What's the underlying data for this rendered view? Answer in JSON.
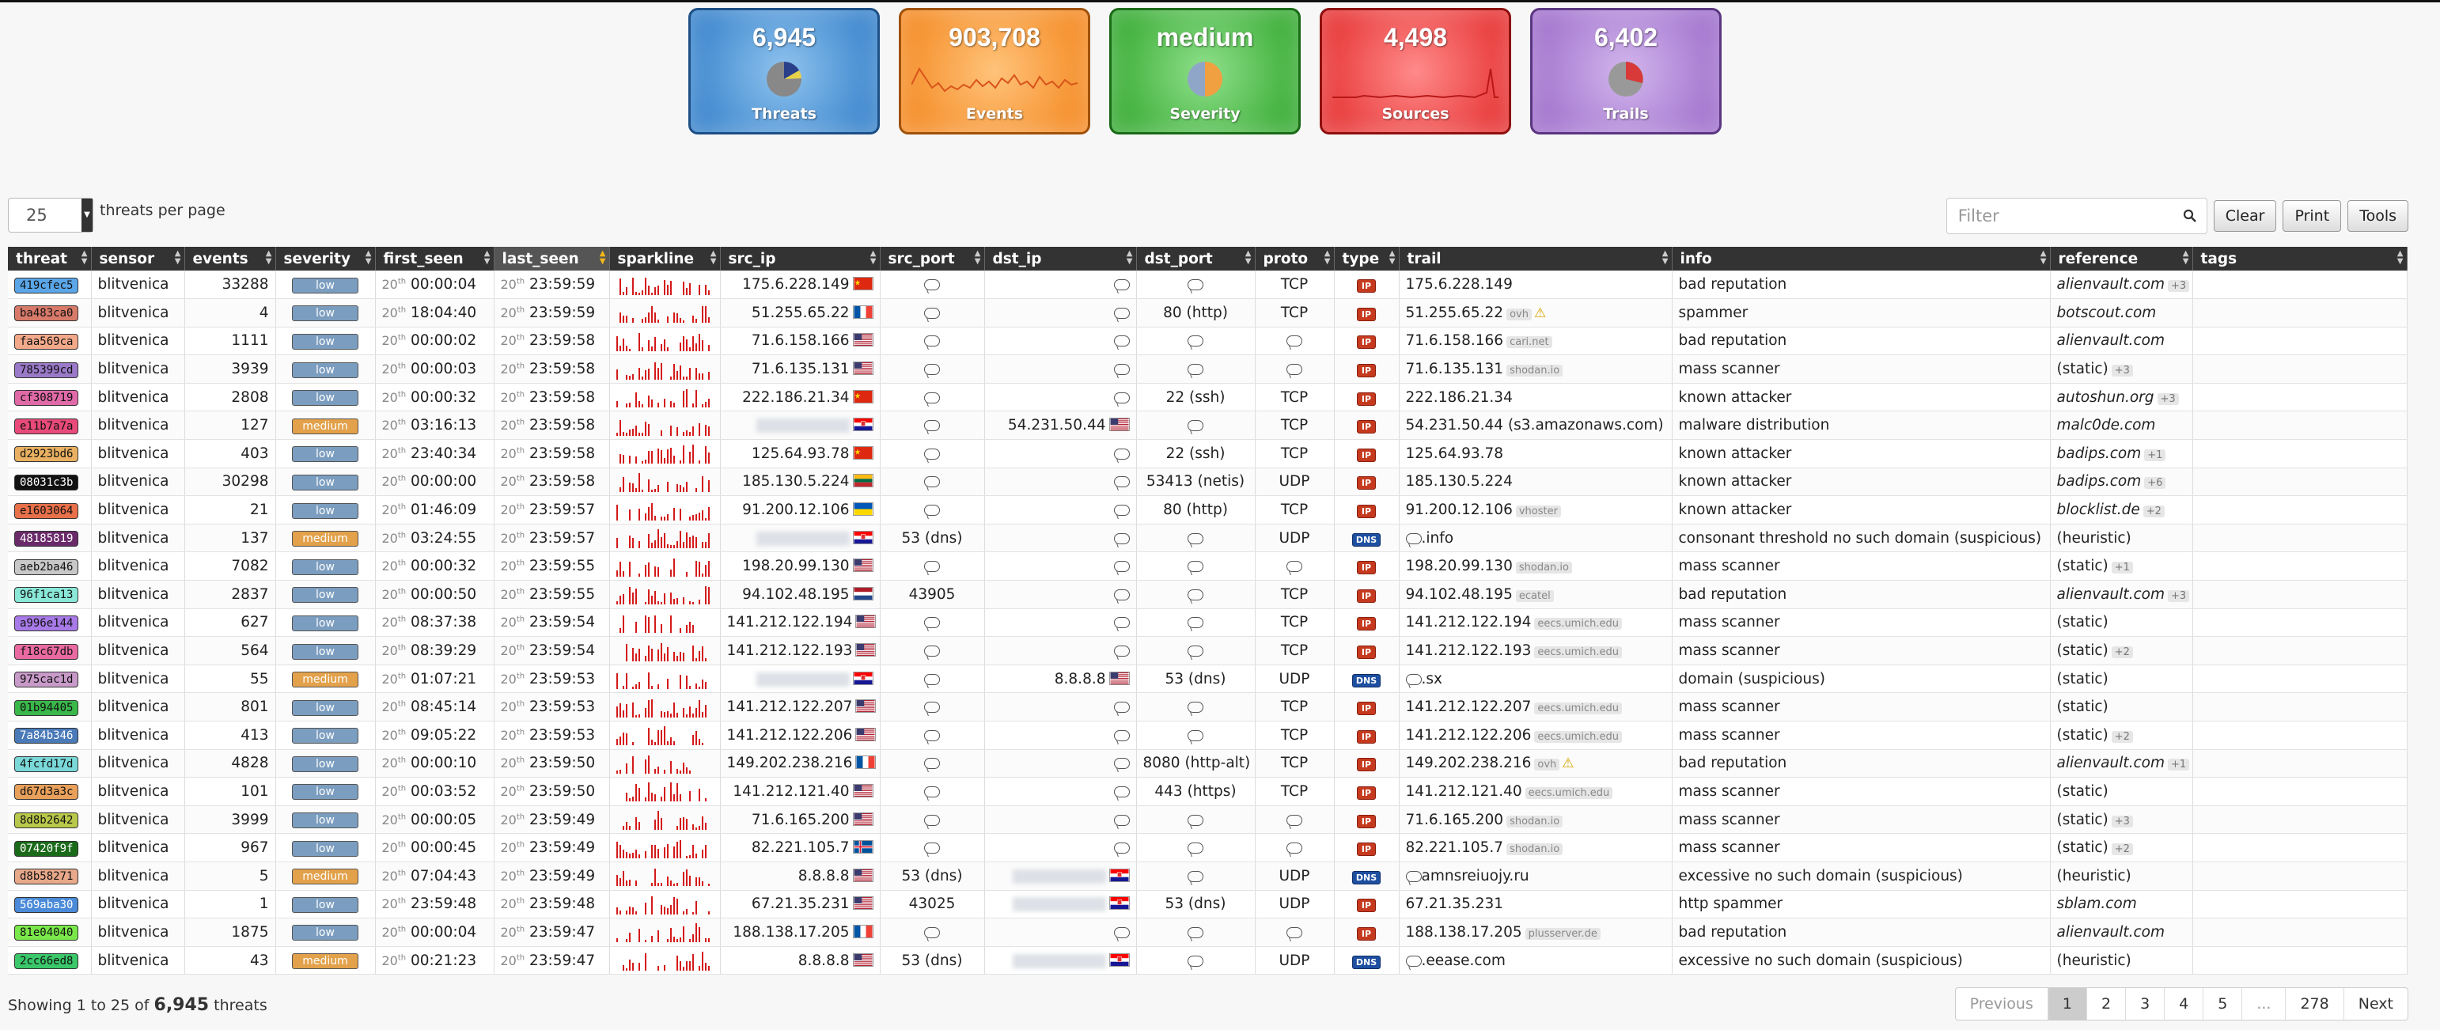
{
  "status_boxes": [
    {
      "id": "threats",
      "value": "6,945",
      "label": "Threats"
    },
    {
      "id": "events",
      "value": "903,708",
      "label": "Events"
    },
    {
      "id": "severity",
      "value": "medium",
      "label": "Severity"
    },
    {
      "id": "sources",
      "value": "4,498",
      "label": "Sources"
    },
    {
      "id": "trails",
      "value": "6,402",
      "label": "Trails"
    }
  ],
  "per_page": {
    "value": "25",
    "label": "threats per page"
  },
  "filter": {
    "placeholder": "Filter"
  },
  "buttons": {
    "clear": "Clear",
    "print": "Print",
    "tools": "Tools"
  },
  "columns": [
    "threat",
    "sensor",
    "events",
    "severity",
    "first_seen",
    "last_seen",
    "sparkline",
    "src_ip",
    "src_port",
    "dst_ip",
    "dst_port",
    "proto",
    "type",
    "trail",
    "info",
    "reference",
    "tags"
  ],
  "rows": [
    {
      "threat": "419cfec5",
      "color": "#5aa6e8",
      "sensor": "blitvenica",
      "events": "33288",
      "severity": "low",
      "first_day": "20",
      "first_time": "00:00:04",
      "last_day": "20",
      "last_time": "23:59:59",
      "src_ip": "175.6.228.149",
      "src_flag": "cn",
      "src_port": "",
      "dst_ip": "",
      "dst_flag": "",
      "dst_port": "",
      "proto": "TCP",
      "type": "IP",
      "trail": "175.6.228.149",
      "trail_tag": "",
      "trail_warn": false,
      "info": "bad reputation",
      "reference": "alienvault.com",
      "ref_italic": true,
      "ref_plus": "+3"
    },
    {
      "threat": "ba483ca0",
      "color": "#d87a6a",
      "sensor": "blitvenica",
      "events": "4",
      "severity": "low",
      "first_day": "20",
      "first_time": "18:04:40",
      "last_day": "20",
      "last_time": "23:59:59",
      "src_ip": "51.255.65.22",
      "src_flag": "fr",
      "src_port": "",
      "dst_ip": "",
      "dst_flag": "",
      "dst_port": "80 (http)",
      "proto": "TCP",
      "type": "IP",
      "trail": "51.255.65.22",
      "trail_tag": "ovh",
      "trail_warn": true,
      "info": "spammer",
      "reference": "botscout.com",
      "ref_italic": true,
      "ref_plus": ""
    },
    {
      "threat": "faa569ca",
      "color": "#f2a98a",
      "sensor": "blitvenica",
      "events": "1111",
      "severity": "low",
      "first_day": "20",
      "first_time": "00:00:02",
      "last_day": "20",
      "last_time": "23:59:58",
      "src_ip": "71.6.158.166",
      "src_flag": "us",
      "src_port": "",
      "dst_ip": "",
      "dst_flag": "",
      "dst_port": "",
      "proto": "",
      "type": "IP",
      "trail": "71.6.158.166",
      "trail_tag": "cari.net",
      "trail_warn": false,
      "info": "bad reputation",
      "reference": "alienvault.com",
      "ref_italic": true,
      "ref_plus": ""
    },
    {
      "threat": "785399cd",
      "color": "#9a7ac8",
      "sensor": "blitvenica",
      "events": "3939",
      "severity": "low",
      "first_day": "20",
      "first_time": "00:00:03",
      "last_day": "20",
      "last_time": "23:59:58",
      "src_ip": "71.6.135.131",
      "src_flag": "us",
      "src_port": "",
      "dst_ip": "",
      "dst_flag": "",
      "dst_port": "",
      "proto": "",
      "type": "IP",
      "trail": "71.6.135.131",
      "trail_tag": "shodan.io",
      "trail_warn": false,
      "info": "mass scanner",
      "reference": "(static)",
      "ref_italic": false,
      "ref_plus": "+3"
    },
    {
      "threat": "cf308719",
      "color": "#e06aa8",
      "sensor": "blitvenica",
      "events": "2808",
      "severity": "low",
      "first_day": "20",
      "first_time": "00:00:32",
      "last_day": "20",
      "last_time": "23:59:58",
      "src_ip": "222.186.21.34",
      "src_flag": "cn",
      "src_port": "",
      "dst_ip": "",
      "dst_flag": "",
      "dst_port": "22 (ssh)",
      "proto": "TCP",
      "type": "IP",
      "trail": "222.186.21.34",
      "trail_tag": "",
      "trail_warn": false,
      "info": "known attacker",
      "reference": "autoshun.org",
      "ref_italic": true,
      "ref_plus": "+3"
    },
    {
      "threat": "e11b7a7a",
      "color": "#e84a7a",
      "sensor": "blitvenica",
      "events": "127",
      "severity": "medium",
      "first_day": "20",
      "first_time": "03:16:13",
      "last_day": "20",
      "last_time": "23:59:58",
      "src_ip": "",
      "src_flag": "hr",
      "src_port": "",
      "dst_ip": "54.231.50.44",
      "dst_flag": "us",
      "dst_port": "",
      "proto": "TCP",
      "type": "IP",
      "trail": "54.231.50.44 (s3.amazonaws.com)",
      "trail_tag": "",
      "trail_warn": false,
      "info": "malware distribution",
      "reference": "malc0de.com",
      "ref_italic": true,
      "ref_plus": ""
    },
    {
      "threat": "d2923bd6",
      "color": "#e8b060",
      "sensor": "blitvenica",
      "events": "403",
      "severity": "low",
      "first_day": "20",
      "first_time": "23:40:34",
      "last_day": "20",
      "last_time": "23:59:58",
      "src_ip": "125.64.93.78",
      "src_flag": "cn",
      "src_port": "",
      "dst_ip": "",
      "dst_flag": "",
      "dst_port": "22 (ssh)",
      "proto": "TCP",
      "type": "IP",
      "trail": "125.64.93.78",
      "trail_tag": "",
      "trail_warn": false,
      "info": "known attacker",
      "reference": "badips.com",
      "ref_italic": true,
      "ref_plus": "+1"
    },
    {
      "threat": "08031c3b",
      "color": "#111111",
      "sensor": "blitvenica",
      "events": "30298",
      "severity": "low",
      "first_day": "20",
      "first_time": "00:00:00",
      "last_day": "20",
      "last_time": "23:59:58",
      "src_ip": "185.130.5.224",
      "src_flag": "lt",
      "src_port": "",
      "dst_ip": "",
      "dst_flag": "",
      "dst_port": "53413 (netis)",
      "proto": "UDP",
      "type": "IP",
      "trail": "185.130.5.224",
      "trail_tag": "",
      "trail_warn": false,
      "info": "known attacker",
      "reference": "badips.com",
      "ref_italic": true,
      "ref_plus": "+6"
    },
    {
      "threat": "e1603064",
      "color": "#e8704a",
      "sensor": "blitvenica",
      "events": "21",
      "severity": "low",
      "first_day": "20",
      "first_time": "01:46:09",
      "last_day": "20",
      "last_time": "23:59:57",
      "src_ip": "91.200.12.106",
      "src_flag": "ua",
      "src_port": "",
      "dst_ip": "",
      "dst_flag": "",
      "dst_port": "80 (http)",
      "proto": "TCP",
      "type": "IP",
      "trail": "91.200.12.106",
      "trail_tag": "vhoster",
      "trail_warn": false,
      "info": "known attacker",
      "reference": "blocklist.de",
      "ref_italic": true,
      "ref_plus": "+2"
    },
    {
      "threat": "48185819",
      "color": "#6a2a6a",
      "sensor": "blitvenica",
      "events": "137",
      "severity": "medium",
      "first_day": "20",
      "first_time": "03:24:55",
      "last_day": "20",
      "last_time": "23:59:57",
      "src_ip": "",
      "src_flag": "hr",
      "src_port": "53 (dns)",
      "dst_ip": "",
      "dst_flag": "",
      "dst_port": "",
      "proto": "UDP",
      "type": "DNS",
      "trail": ".info",
      "trail_tag": "",
      "trail_warn": false,
      "info": "consonant threshold no such domain (suspicious)",
      "reference": "(heuristic)",
      "ref_italic": false,
      "ref_plus": ""
    },
    {
      "threat": "aeb2ba46",
      "color": "#c8c8c8",
      "sensor": "blitvenica",
      "events": "7082",
      "severity": "low",
      "first_day": "20",
      "first_time": "00:00:32",
      "last_day": "20",
      "last_time": "23:59:55",
      "src_ip": "198.20.99.130",
      "src_flag": "us",
      "src_port": "",
      "dst_ip": "",
      "dst_flag": "",
      "dst_port": "",
      "proto": "",
      "type": "IP",
      "trail": "198.20.99.130",
      "trail_tag": "shodan.io",
      "trail_warn": false,
      "info": "mass scanner",
      "reference": "(static)",
      "ref_italic": false,
      "ref_plus": "+1"
    },
    {
      "threat": "96f1ca13",
      "color": "#8ae8d8",
      "sensor": "blitvenica",
      "events": "2837",
      "severity": "low",
      "first_day": "20",
      "first_time": "00:00:50",
      "last_day": "20",
      "last_time": "23:59:55",
      "src_ip": "94.102.48.195",
      "src_flag": "nl",
      "src_port": "43905",
      "dst_ip": "",
      "dst_flag": "",
      "dst_port": "",
      "proto": "TCP",
      "type": "IP",
      "trail": "94.102.48.195",
      "trail_tag": "ecatel",
      "trail_warn": false,
      "info": "bad reputation",
      "reference": "alienvault.com",
      "ref_italic": true,
      "ref_plus": "+3"
    },
    {
      "threat": "a996e144",
      "color": "#a87ae8",
      "sensor": "blitvenica",
      "events": "627",
      "severity": "low",
      "first_day": "20",
      "first_time": "08:37:38",
      "last_day": "20",
      "last_time": "23:59:54",
      "src_ip": "141.212.122.194",
      "src_flag": "us",
      "src_port": "",
      "dst_ip": "",
      "dst_flag": "",
      "dst_port": "",
      "proto": "TCP",
      "type": "IP",
      "trail": "141.212.122.194",
      "trail_tag": "eecs.umich.edu",
      "trail_warn": false,
      "info": "mass scanner",
      "reference": "(static)",
      "ref_italic": false,
      "ref_plus": ""
    },
    {
      "threat": "f18c67db",
      "color": "#e86aa0",
      "sensor": "blitvenica",
      "events": "564",
      "severity": "low",
      "first_day": "20",
      "first_time": "08:39:29",
      "last_day": "20",
      "last_time": "23:59:54",
      "src_ip": "141.212.122.193",
      "src_flag": "us",
      "src_port": "",
      "dst_ip": "",
      "dst_flag": "",
      "dst_port": "",
      "proto": "TCP",
      "type": "IP",
      "trail": "141.212.122.193",
      "trail_tag": "eecs.umich.edu",
      "trail_warn": false,
      "info": "mass scanner",
      "reference": "(static)",
      "ref_italic": false,
      "ref_plus": "+2"
    },
    {
      "threat": "975cac1d",
      "color": "#c89ac8",
      "sensor": "blitvenica",
      "events": "55",
      "severity": "medium",
      "first_day": "20",
      "first_time": "01:07:21",
      "last_day": "20",
      "last_time": "23:59:53",
      "src_ip": "",
      "src_flag": "hr",
      "src_port": "",
      "dst_ip": "8.8.8.8",
      "dst_flag": "us",
      "dst_port": "53 (dns)",
      "proto": "UDP",
      "type": "DNS",
      "trail": ".sx",
      "trail_tag": "",
      "trail_warn": false,
      "info": "domain (suspicious)",
      "reference": "(static)",
      "ref_italic": false,
      "ref_plus": ""
    },
    {
      "threat": "01b94405",
      "color": "#3ab84a",
      "sensor": "blitvenica",
      "events": "801",
      "severity": "low",
      "first_day": "20",
      "first_time": "08:45:14",
      "last_day": "20",
      "last_time": "23:59:53",
      "src_ip": "141.212.122.207",
      "src_flag": "us",
      "src_port": "",
      "dst_ip": "",
      "dst_flag": "",
      "dst_port": "",
      "proto": "TCP",
      "type": "IP",
      "trail": "141.212.122.207",
      "trail_tag": "eecs.umich.edu",
      "trail_warn": false,
      "info": "mass scanner",
      "reference": "(static)",
      "ref_italic": false,
      "ref_plus": ""
    },
    {
      "threat": "7a84b346",
      "color": "#4a7ab8",
      "sensor": "blitvenica",
      "events": "413",
      "severity": "low",
      "first_day": "20",
      "first_time": "09:05:22",
      "last_day": "20",
      "last_time": "23:59:53",
      "src_ip": "141.212.122.206",
      "src_flag": "us",
      "src_port": "",
      "dst_ip": "",
      "dst_flag": "",
      "dst_port": "",
      "proto": "TCP",
      "type": "IP",
      "trail": "141.212.122.206",
      "trail_tag": "eecs.umich.edu",
      "trail_warn": false,
      "info": "mass scanner",
      "reference": "(static)",
      "ref_italic": false,
      "ref_plus": "+2"
    },
    {
      "threat": "4fcfd17d",
      "color": "#7ad8d8",
      "sensor": "blitvenica",
      "events": "4828",
      "severity": "low",
      "first_day": "20",
      "first_time": "00:00:10",
      "last_day": "20",
      "last_time": "23:59:50",
      "src_ip": "149.202.238.216",
      "src_flag": "fr",
      "src_port": "",
      "dst_ip": "",
      "dst_flag": "",
      "dst_port": "8080 (http-alt)",
      "proto": "TCP",
      "type": "IP",
      "trail": "149.202.238.216",
      "trail_tag": "ovh",
      "trail_warn": true,
      "info": "bad reputation",
      "reference": "alienvault.com",
      "ref_italic": true,
      "ref_plus": "+1"
    },
    {
      "threat": "d67d3a3c",
      "color": "#e8a05a",
      "sensor": "blitvenica",
      "events": "101",
      "severity": "low",
      "first_day": "20",
      "first_time": "00:03:52",
      "last_day": "20",
      "last_time": "23:59:50",
      "src_ip": "141.212.121.40",
      "src_flag": "us",
      "src_port": "",
      "dst_ip": "",
      "dst_flag": "",
      "dst_port": "443 (https)",
      "proto": "TCP",
      "type": "IP",
      "trail": "141.212.121.40",
      "trail_tag": "eecs.umich.edu",
      "trail_warn": false,
      "info": "mass scanner",
      "reference": "(static)",
      "ref_italic": false,
      "ref_plus": ""
    },
    {
      "threat": "8d8b2642",
      "color": "#b8c84a",
      "sensor": "blitvenica",
      "events": "3999",
      "severity": "low",
      "first_day": "20",
      "first_time": "00:00:05",
      "last_day": "20",
      "last_time": "23:59:49",
      "src_ip": "71.6.165.200",
      "src_flag": "us",
      "src_port": "",
      "dst_ip": "",
      "dst_flag": "",
      "dst_port": "",
      "proto": "",
      "type": "IP",
      "trail": "71.6.165.200",
      "trail_tag": "shodan.io",
      "trail_warn": false,
      "info": "mass scanner",
      "reference": "(static)",
      "ref_italic": false,
      "ref_plus": "+3"
    },
    {
      "threat": "07420f9f",
      "color": "#1a6a1a",
      "sensor": "blitvenica",
      "events": "967",
      "severity": "low",
      "first_day": "20",
      "first_time": "00:00:45",
      "last_day": "20",
      "last_time": "23:59:49",
      "src_ip": "82.221.105.7",
      "src_flag": "is",
      "src_port": "",
      "dst_ip": "",
      "dst_flag": "",
      "dst_port": "",
      "proto": "",
      "type": "IP",
      "trail": "82.221.105.7",
      "trail_tag": "shodan.io",
      "trail_warn": false,
      "info": "mass scanner",
      "reference": "(static)",
      "ref_italic": false,
      "ref_plus": "+2"
    },
    {
      "threat": "d8b58271",
      "color": "#e8a88a",
      "sensor": "blitvenica",
      "events": "5",
      "severity": "medium",
      "first_day": "20",
      "first_time": "07:04:43",
      "last_day": "20",
      "last_time": "23:59:49",
      "src_ip": "8.8.8.8",
      "src_flag": "us",
      "src_port": "53 (dns)",
      "dst_ip": "",
      "dst_flag": "hr",
      "dst_port": "",
      "proto": "UDP",
      "type": "DNS",
      "trail": "amnsreiuojy.ru",
      "trail_tag": "",
      "trail_warn": false,
      "info": "excessive no such domain (suspicious)",
      "reference": "(heuristic)",
      "ref_italic": false,
      "ref_plus": ""
    },
    {
      "threat": "569aba30",
      "color": "#4a8ad8",
      "sensor": "blitvenica",
      "events": "1",
      "severity": "low",
      "first_day": "20",
      "first_time": "23:59:48",
      "last_day": "20",
      "last_time": "23:59:48",
      "src_ip": "67.21.35.231",
      "src_flag": "us",
      "src_port": "43025",
      "dst_ip": "",
      "dst_flag": "hr",
      "dst_port": "53 (dns)",
      "proto": "UDP",
      "type": "IP",
      "trail": "67.21.35.231",
      "trail_tag": "",
      "trail_warn": false,
      "info": "http spammer",
      "reference": "sblam.com",
      "ref_italic": true,
      "ref_plus": ""
    },
    {
      "threat": "81e04040",
      "color": "#7ae84a",
      "sensor": "blitvenica",
      "events": "1875",
      "severity": "low",
      "first_day": "20",
      "first_time": "00:00:04",
      "last_day": "20",
      "last_time": "23:59:47",
      "src_ip": "188.138.17.205",
      "src_flag": "fr",
      "src_port": "",
      "dst_ip": "",
      "dst_flag": "",
      "dst_port": "",
      "proto": "",
      "type": "IP",
      "trail": "188.138.17.205",
      "trail_tag": "plusserver.de",
      "trail_warn": false,
      "info": "bad reputation",
      "reference": "alienvault.com",
      "ref_italic": true,
      "ref_plus": ""
    },
    {
      "threat": "2cc66ed8",
      "color": "#3ac86a",
      "sensor": "blitvenica",
      "events": "43",
      "severity": "medium",
      "first_day": "20",
      "first_time": "00:21:23",
      "last_day": "20",
      "last_time": "23:59:47",
      "src_ip": "8.8.8.8",
      "src_flag": "us",
      "src_port": "53 (dns)",
      "dst_ip": "",
      "dst_flag": "hr",
      "dst_port": "",
      "proto": "UDP",
      "type": "DNS",
      "trail": ".eease.com",
      "trail_tag": "",
      "trail_warn": false,
      "info": "excessive no such domain (suspicious)",
      "reference": "(heuristic)",
      "ref_italic": false,
      "ref_plus": ""
    }
  ],
  "footer": {
    "prefix": "Showing 1 to 25 of",
    "total": "6,945",
    "suffix": "threats"
  },
  "pagination": [
    "Previous",
    "1",
    "2",
    "3",
    "4",
    "5",
    "...",
    "278",
    "Next"
  ]
}
